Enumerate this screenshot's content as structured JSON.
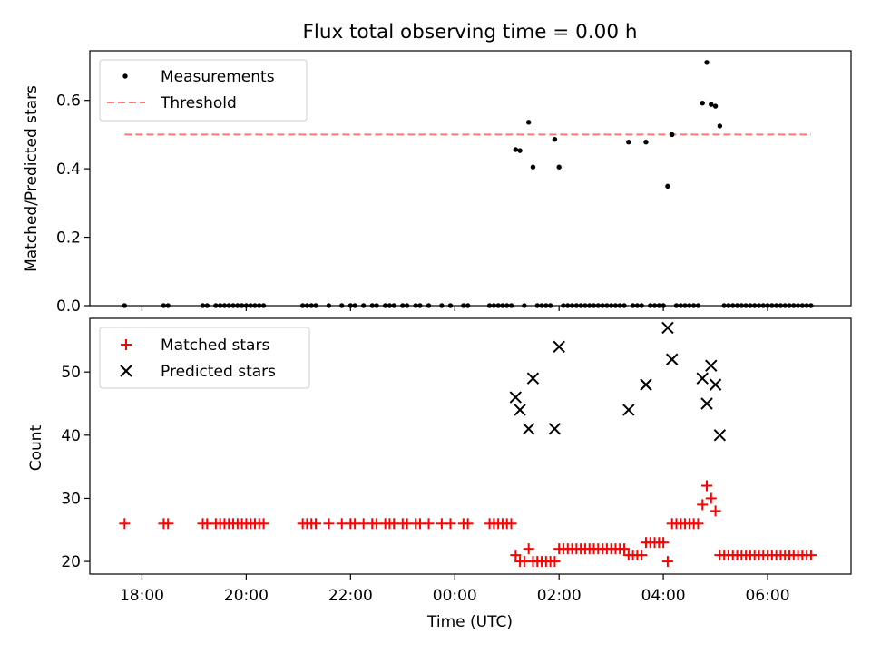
{
  "title": "Flux total observing time = 0.00 h",
  "chart_data": [
    {
      "type": "scatter",
      "panel": "top",
      "ylabel": "Matched/Predicted stars",
      "xlabel": "",
      "ylim": [
        0,
        0.745
      ],
      "yticks": [
        0.0,
        0.2,
        0.4,
        0.6
      ],
      "ytick_labels": [
        "0.0",
        "0.2",
        "0.4",
        "0.6"
      ],
      "grid": false,
      "legend_position": "upper-left",
      "legend": [
        "Measurements",
        "Threshold"
      ],
      "threshold": {
        "name": "Threshold",
        "value": 0.5,
        "x_start": "17:40",
        "x_end": "06:50",
        "color": "#ff7777",
        "style": "dashed"
      },
      "series": [
        {
          "name": "Measurements",
          "marker": "dot",
          "color": "#000000",
          "points": [
            [
              "17:40",
              0
            ],
            [
              "18:25",
              0
            ],
            [
              "18:30",
              0
            ],
            [
              "19:10",
              0
            ],
            [
              "19:15",
              0
            ],
            [
              "19:25",
              0
            ],
            [
              "19:30",
              0
            ],
            [
              "19:35",
              0
            ],
            [
              "19:40",
              0
            ],
            [
              "19:45",
              0
            ],
            [
              "19:50",
              0
            ],
            [
              "19:55",
              0
            ],
            [
              "20:00",
              0
            ],
            [
              "20:05",
              0
            ],
            [
              "20:10",
              0
            ],
            [
              "20:15",
              0
            ],
            [
              "20:20",
              0
            ],
            [
              "21:05",
              0
            ],
            [
              "21:10",
              0
            ],
            [
              "21:15",
              0
            ],
            [
              "21:20",
              0
            ],
            [
              "21:35",
              0
            ],
            [
              "21:50",
              0
            ],
            [
              "22:00",
              0
            ],
            [
              "22:05",
              0
            ],
            [
              "22:15",
              0
            ],
            [
              "22:25",
              0
            ],
            [
              "22:30",
              0
            ],
            [
              "22:40",
              0
            ],
            [
              "22:45",
              0
            ],
            [
              "22:50",
              0
            ],
            [
              "23:00",
              0
            ],
            [
              "23:05",
              0
            ],
            [
              "23:15",
              0
            ],
            [
              "23:20",
              0
            ],
            [
              "23:30",
              0
            ],
            [
              "23:45",
              0
            ],
            [
              "23:55",
              0
            ],
            [
              "00:10",
              0
            ],
            [
              "00:15",
              0
            ],
            [
              "00:40",
              0
            ],
            [
              "00:45",
              0
            ],
            [
              "00:50",
              0
            ],
            [
              "00:55",
              0
            ],
            [
              "01:00",
              0
            ],
            [
              "01:05",
              0
            ],
            [
              "01:10",
              0.456
            ],
            [
              "01:15",
              0.453
            ],
            [
              "01:20",
              0
            ],
            [
              "01:25",
              0.536
            ],
            [
              "01:30",
              0.405
            ],
            [
              "01:35",
              0
            ],
            [
              "01:40",
              0
            ],
            [
              "01:45",
              0
            ],
            [
              "01:50",
              0
            ],
            [
              "01:55",
              0.486
            ],
            [
              "02:00",
              0.405
            ],
            [
              "02:05",
              0
            ],
            [
              "02:10",
              0
            ],
            [
              "02:15",
              0
            ],
            [
              "02:20",
              0
            ],
            [
              "02:25",
              0
            ],
            [
              "02:30",
              0
            ],
            [
              "02:35",
              0
            ],
            [
              "02:40",
              0
            ],
            [
              "02:45",
              0
            ],
            [
              "02:50",
              0
            ],
            [
              "02:55",
              0
            ],
            [
              "03:00",
              0
            ],
            [
              "03:05",
              0
            ],
            [
              "03:10",
              0
            ],
            [
              "03:15",
              0
            ],
            [
              "03:20",
              0.478
            ],
            [
              "03:25",
              0
            ],
            [
              "03:30",
              0
            ],
            [
              "03:35",
              0
            ],
            [
              "03:40",
              0.478
            ],
            [
              "03:45",
              0
            ],
            [
              "03:50",
              0
            ],
            [
              "03:55",
              0
            ],
            [
              "04:00",
              0
            ],
            [
              "04:05",
              0.349
            ],
            [
              "04:10",
              0.5
            ],
            [
              "04:15",
              0
            ],
            [
              "04:20",
              0
            ],
            [
              "04:25",
              0
            ],
            [
              "04:30",
              0
            ],
            [
              "04:35",
              0
            ],
            [
              "04:40",
              0
            ],
            [
              "04:45",
              0.592
            ],
            [
              "04:50",
              0.711
            ],
            [
              "04:55",
              0.588
            ],
            [
              "05:00",
              0.583
            ],
            [
              "05:05",
              0.525
            ],
            [
              "05:10",
              0
            ],
            [
              "05:15",
              0
            ],
            [
              "05:20",
              0
            ],
            [
              "05:25",
              0
            ],
            [
              "05:30",
              0
            ],
            [
              "05:35",
              0
            ],
            [
              "05:40",
              0
            ],
            [
              "05:45",
              0
            ],
            [
              "05:50",
              0
            ],
            [
              "05:55",
              0
            ],
            [
              "06:00",
              0
            ],
            [
              "06:05",
              0
            ],
            [
              "06:10",
              0
            ],
            [
              "06:15",
              0
            ],
            [
              "06:20",
              0
            ],
            [
              "06:25",
              0
            ],
            [
              "06:30",
              0
            ],
            [
              "06:35",
              0
            ],
            [
              "06:40",
              0
            ],
            [
              "06:45",
              0
            ],
            [
              "06:50",
              0
            ]
          ]
        }
      ]
    },
    {
      "type": "scatter",
      "panel": "bottom",
      "ylabel": "Count",
      "xlabel": "Time (UTC)",
      "ylim": [
        18,
        58.5
      ],
      "yticks": [
        20,
        30,
        40,
        50
      ],
      "ytick_labels": [
        "20",
        "30",
        "40",
        "50"
      ],
      "xlim_hours": [
        -7.0,
        7.6
      ],
      "xticks": [
        -6,
        -4,
        -2,
        0,
        2,
        4,
        6
      ],
      "xtick_labels": [
        "18:00",
        "20:00",
        "22:00",
        "00:00",
        "02:00",
        "04:00",
        "06:00"
      ],
      "grid": false,
      "legend_position": "upper-left",
      "legend": [
        "Matched stars",
        "Predicted stars"
      ],
      "series": [
        {
          "name": "Matched stars",
          "marker": "plus",
          "color": "#ff0000",
          "points": [
            [
              "17:40",
              26
            ],
            [
              "18:25",
              26
            ],
            [
              "18:30",
              26
            ],
            [
              "19:10",
              26
            ],
            [
              "19:15",
              26
            ],
            [
              "19:25",
              26
            ],
            [
              "19:30",
              26
            ],
            [
              "19:35",
              26
            ],
            [
              "19:40",
              26
            ],
            [
              "19:45",
              26
            ],
            [
              "19:50",
              26
            ],
            [
              "19:55",
              26
            ],
            [
              "20:00",
              26
            ],
            [
              "20:05",
              26
            ],
            [
              "20:10",
              26
            ],
            [
              "20:15",
              26
            ],
            [
              "20:20",
              26
            ],
            [
              "21:05",
              26
            ],
            [
              "21:10",
              26
            ],
            [
              "21:15",
              26
            ],
            [
              "21:20",
              26
            ],
            [
              "21:35",
              26
            ],
            [
              "21:50",
              26
            ],
            [
              "22:00",
              26
            ],
            [
              "22:05",
              26
            ],
            [
              "22:15",
              26
            ],
            [
              "22:25",
              26
            ],
            [
              "22:30",
              26
            ],
            [
              "22:40",
              26
            ],
            [
              "22:45",
              26
            ],
            [
              "22:50",
              26
            ],
            [
              "23:00",
              26
            ],
            [
              "23:05",
              26
            ],
            [
              "23:15",
              26
            ],
            [
              "23:20",
              26
            ],
            [
              "23:30",
              26
            ],
            [
              "23:45",
              26
            ],
            [
              "23:55",
              26
            ],
            [
              "00:10",
              26
            ],
            [
              "00:15",
              26
            ],
            [
              "00:40",
              26
            ],
            [
              "00:45",
              26
            ],
            [
              "00:50",
              26
            ],
            [
              "00:55",
              26
            ],
            [
              "01:00",
              26
            ],
            [
              "01:05",
              26
            ],
            [
              "01:10",
              21
            ],
            [
              "01:15",
              20
            ],
            [
              "01:20",
              20
            ],
            [
              "01:25",
              22
            ],
            [
              "01:30",
              20
            ],
            [
              "01:35",
              20
            ],
            [
              "01:40",
              20
            ],
            [
              "01:45",
              20
            ],
            [
              "01:50",
              20
            ],
            [
              "01:55",
              20
            ],
            [
              "02:00",
              22
            ],
            [
              "02:05",
              22
            ],
            [
              "02:10",
              22
            ],
            [
              "02:15",
              22
            ],
            [
              "02:20",
              22
            ],
            [
              "02:25",
              22
            ],
            [
              "02:30",
              22
            ],
            [
              "02:35",
              22
            ],
            [
              "02:40",
              22
            ],
            [
              "02:45",
              22
            ],
            [
              "02:50",
              22
            ],
            [
              "02:55",
              22
            ],
            [
              "03:00",
              22
            ],
            [
              "03:05",
              22
            ],
            [
              "03:10",
              22
            ],
            [
              "03:15",
              22
            ],
            [
              "03:20",
              21
            ],
            [
              "03:25",
              21
            ],
            [
              "03:30",
              21
            ],
            [
              "03:35",
              21
            ],
            [
              "03:40",
              23
            ],
            [
              "03:45",
              23
            ],
            [
              "03:50",
              23
            ],
            [
              "03:55",
              23
            ],
            [
              "04:00",
              23
            ],
            [
              "04:05",
              20
            ],
            [
              "04:10",
              26
            ],
            [
              "04:15",
              26
            ],
            [
              "04:20",
              26
            ],
            [
              "04:25",
              26
            ],
            [
              "04:30",
              26
            ],
            [
              "04:35",
              26
            ],
            [
              "04:40",
              26
            ],
            [
              "04:45",
              29
            ],
            [
              "04:50",
              32
            ],
            [
              "04:55",
              30
            ],
            [
              "05:00",
              28
            ],
            [
              "05:05",
              21
            ],
            [
              "05:10",
              21
            ],
            [
              "05:15",
              21
            ],
            [
              "05:20",
              21
            ],
            [
              "05:25",
              21
            ],
            [
              "05:30",
              21
            ],
            [
              "05:35",
              21
            ],
            [
              "05:40",
              21
            ],
            [
              "05:45",
              21
            ],
            [
              "05:50",
              21
            ],
            [
              "05:55",
              21
            ],
            [
              "06:00",
              21
            ],
            [
              "06:05",
              21
            ],
            [
              "06:10",
              21
            ],
            [
              "06:15",
              21
            ],
            [
              "06:20",
              21
            ],
            [
              "06:25",
              21
            ],
            [
              "06:30",
              21
            ],
            [
              "06:35",
              21
            ],
            [
              "06:40",
              21
            ],
            [
              "06:45",
              21
            ],
            [
              "06:50",
              21
            ]
          ]
        },
        {
          "name": "Predicted stars",
          "marker": "x",
          "color": "#000000",
          "points": [
            [
              "01:10",
              46
            ],
            [
              "01:15",
              44
            ],
            [
              "01:25",
              41
            ],
            [
              "01:30",
              49
            ],
            [
              "01:55",
              41
            ],
            [
              "02:00",
              54
            ],
            [
              "03:20",
              44
            ],
            [
              "03:40",
              48
            ],
            [
              "04:05",
              57
            ],
            [
              "04:10",
              52
            ],
            [
              "04:45",
              49
            ],
            [
              "04:50",
              45
            ],
            [
              "04:55",
              51
            ],
            [
              "05:00",
              48
            ],
            [
              "05:05",
              40
            ]
          ]
        }
      ]
    }
  ]
}
